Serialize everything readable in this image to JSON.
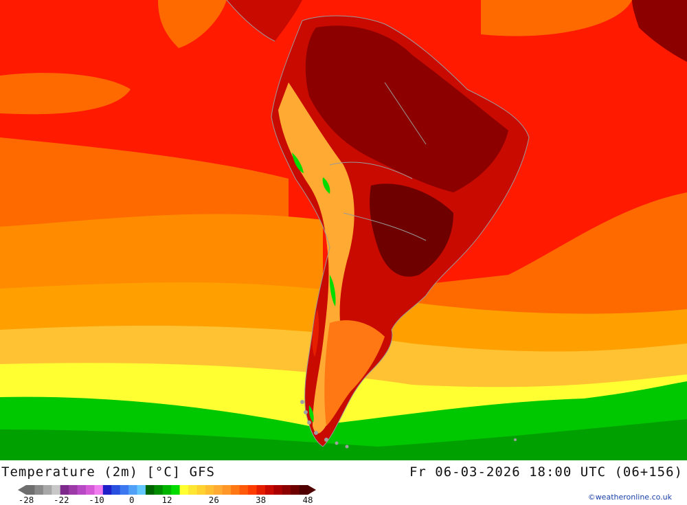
{
  "header": {
    "title": "Temperature (2m) [°C] GFS",
    "datetime": "Fr 06-03-2026 18:00 UTC (06+156)"
  },
  "legend": {
    "colors": [
      "#6e6e6e",
      "#8a8a8a",
      "#a8a8a8",
      "#c8c8c8",
      "#7d2a8c",
      "#9c3aa8",
      "#b849c4",
      "#d45ad8",
      "#f07cf0",
      "#2020c8",
      "#2a50e0",
      "#3c78f0",
      "#50a0f8",
      "#64c8ff",
      "#006400",
      "#008c00",
      "#00b400",
      "#00dc00",
      "#ffff32",
      "#ffe632",
      "#ffd232",
      "#ffbe32",
      "#ffaa32",
      "#ff9628",
      "#ff7814",
      "#ff5a0a",
      "#ff3c00",
      "#e61e00",
      "#c80a00",
      "#aa0000",
      "#8c0000",
      "#6e0000",
      "#500000"
    ],
    "labels": [
      {
        "text": "-28",
        "index": 0
      },
      {
        "text": "-22",
        "index": 3
      },
      {
        "text": "-10",
        "index": 6
      },
      {
        "text": "0",
        "index": 9
      },
      {
        "text": "12",
        "index": 12
      },
      {
        "text": "26",
        "index": 16
      },
      {
        "text": "38",
        "index": 20
      },
      {
        "text": "48",
        "index": 24
      }
    ]
  },
  "credit": "©weatheronline.co.uk"
}
